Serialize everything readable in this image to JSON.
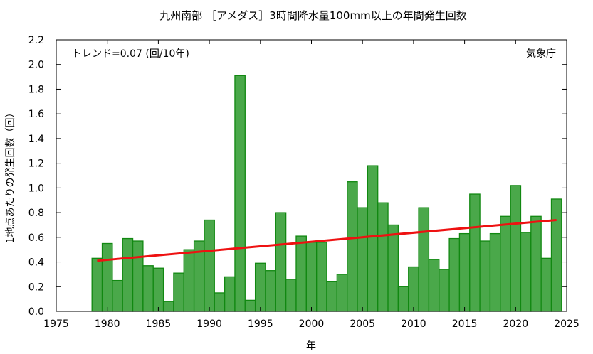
{
  "chart_data": {
    "type": "bar",
    "title": "九州南部 ［アメダス］3時間降水量100mm以上の年間発生回数",
    "xlabel": "年",
    "ylabel": "1地点あたりの発生回数（回）",
    "xlim": [
      1975,
      2025
    ],
    "ylim": [
      0.0,
      2.2
    ],
    "x_ticks": [
      "1975",
      "1980",
      "1985",
      "1990",
      "1995",
      "2000",
      "2005",
      "2010",
      "2015",
      "2020",
      "2025"
    ],
    "y_ticks": [
      "0.0",
      "0.2",
      "0.4",
      "0.6",
      "0.8",
      "1.0",
      "1.2",
      "1.4",
      "1.6",
      "1.8",
      "2.0",
      "2.2"
    ],
    "grid": false,
    "bar_color": "#4aa84a",
    "bar_edge_color": "#118811",
    "trend_color": "#ee1111",
    "trend_text": "トレンド=0.07 (回/10年)",
    "source": "気象庁",
    "series": [
      {
        "x": [
          1979,
          1980,
          1981,
          1982,
          1983,
          1984,
          1985,
          1986,
          1987,
          1988,
          1989,
          1990,
          1991,
          1992,
          1993,
          1994,
          1995,
          1996,
          1997,
          1998,
          1999,
          2000,
          2001,
          2002,
          2003,
          2004,
          2005,
          2006,
          2007,
          2008,
          2009,
          2010,
          2011,
          2012,
          2013,
          2014,
          2015,
          2016,
          2017,
          2018,
          2019,
          2020,
          2021,
          2022,
          2023,
          2024
        ],
        "values": [
          0.43,
          0.55,
          0.25,
          0.59,
          0.57,
          0.37,
          0.35,
          0.08,
          0.31,
          0.5,
          0.57,
          0.74,
          0.15,
          0.28,
          1.91,
          0.09,
          0.39,
          0.33,
          0.8,
          0.26,
          0.61,
          0.56,
          0.56,
          0.24,
          0.3,
          1.05,
          0.84,
          1.18,
          0.88,
          0.7,
          0.2,
          0.36,
          0.84,
          0.42,
          0.34,
          0.59,
          0.63,
          0.95,
          0.57,
          0.63,
          0.77,
          1.02,
          0.64,
          0.77,
          0.43,
          0.91
        ]
      }
    ],
    "trend_line": {
      "x": [
        1979,
        2024
      ],
      "y": [
        0.41,
        0.74
      ]
    }
  }
}
